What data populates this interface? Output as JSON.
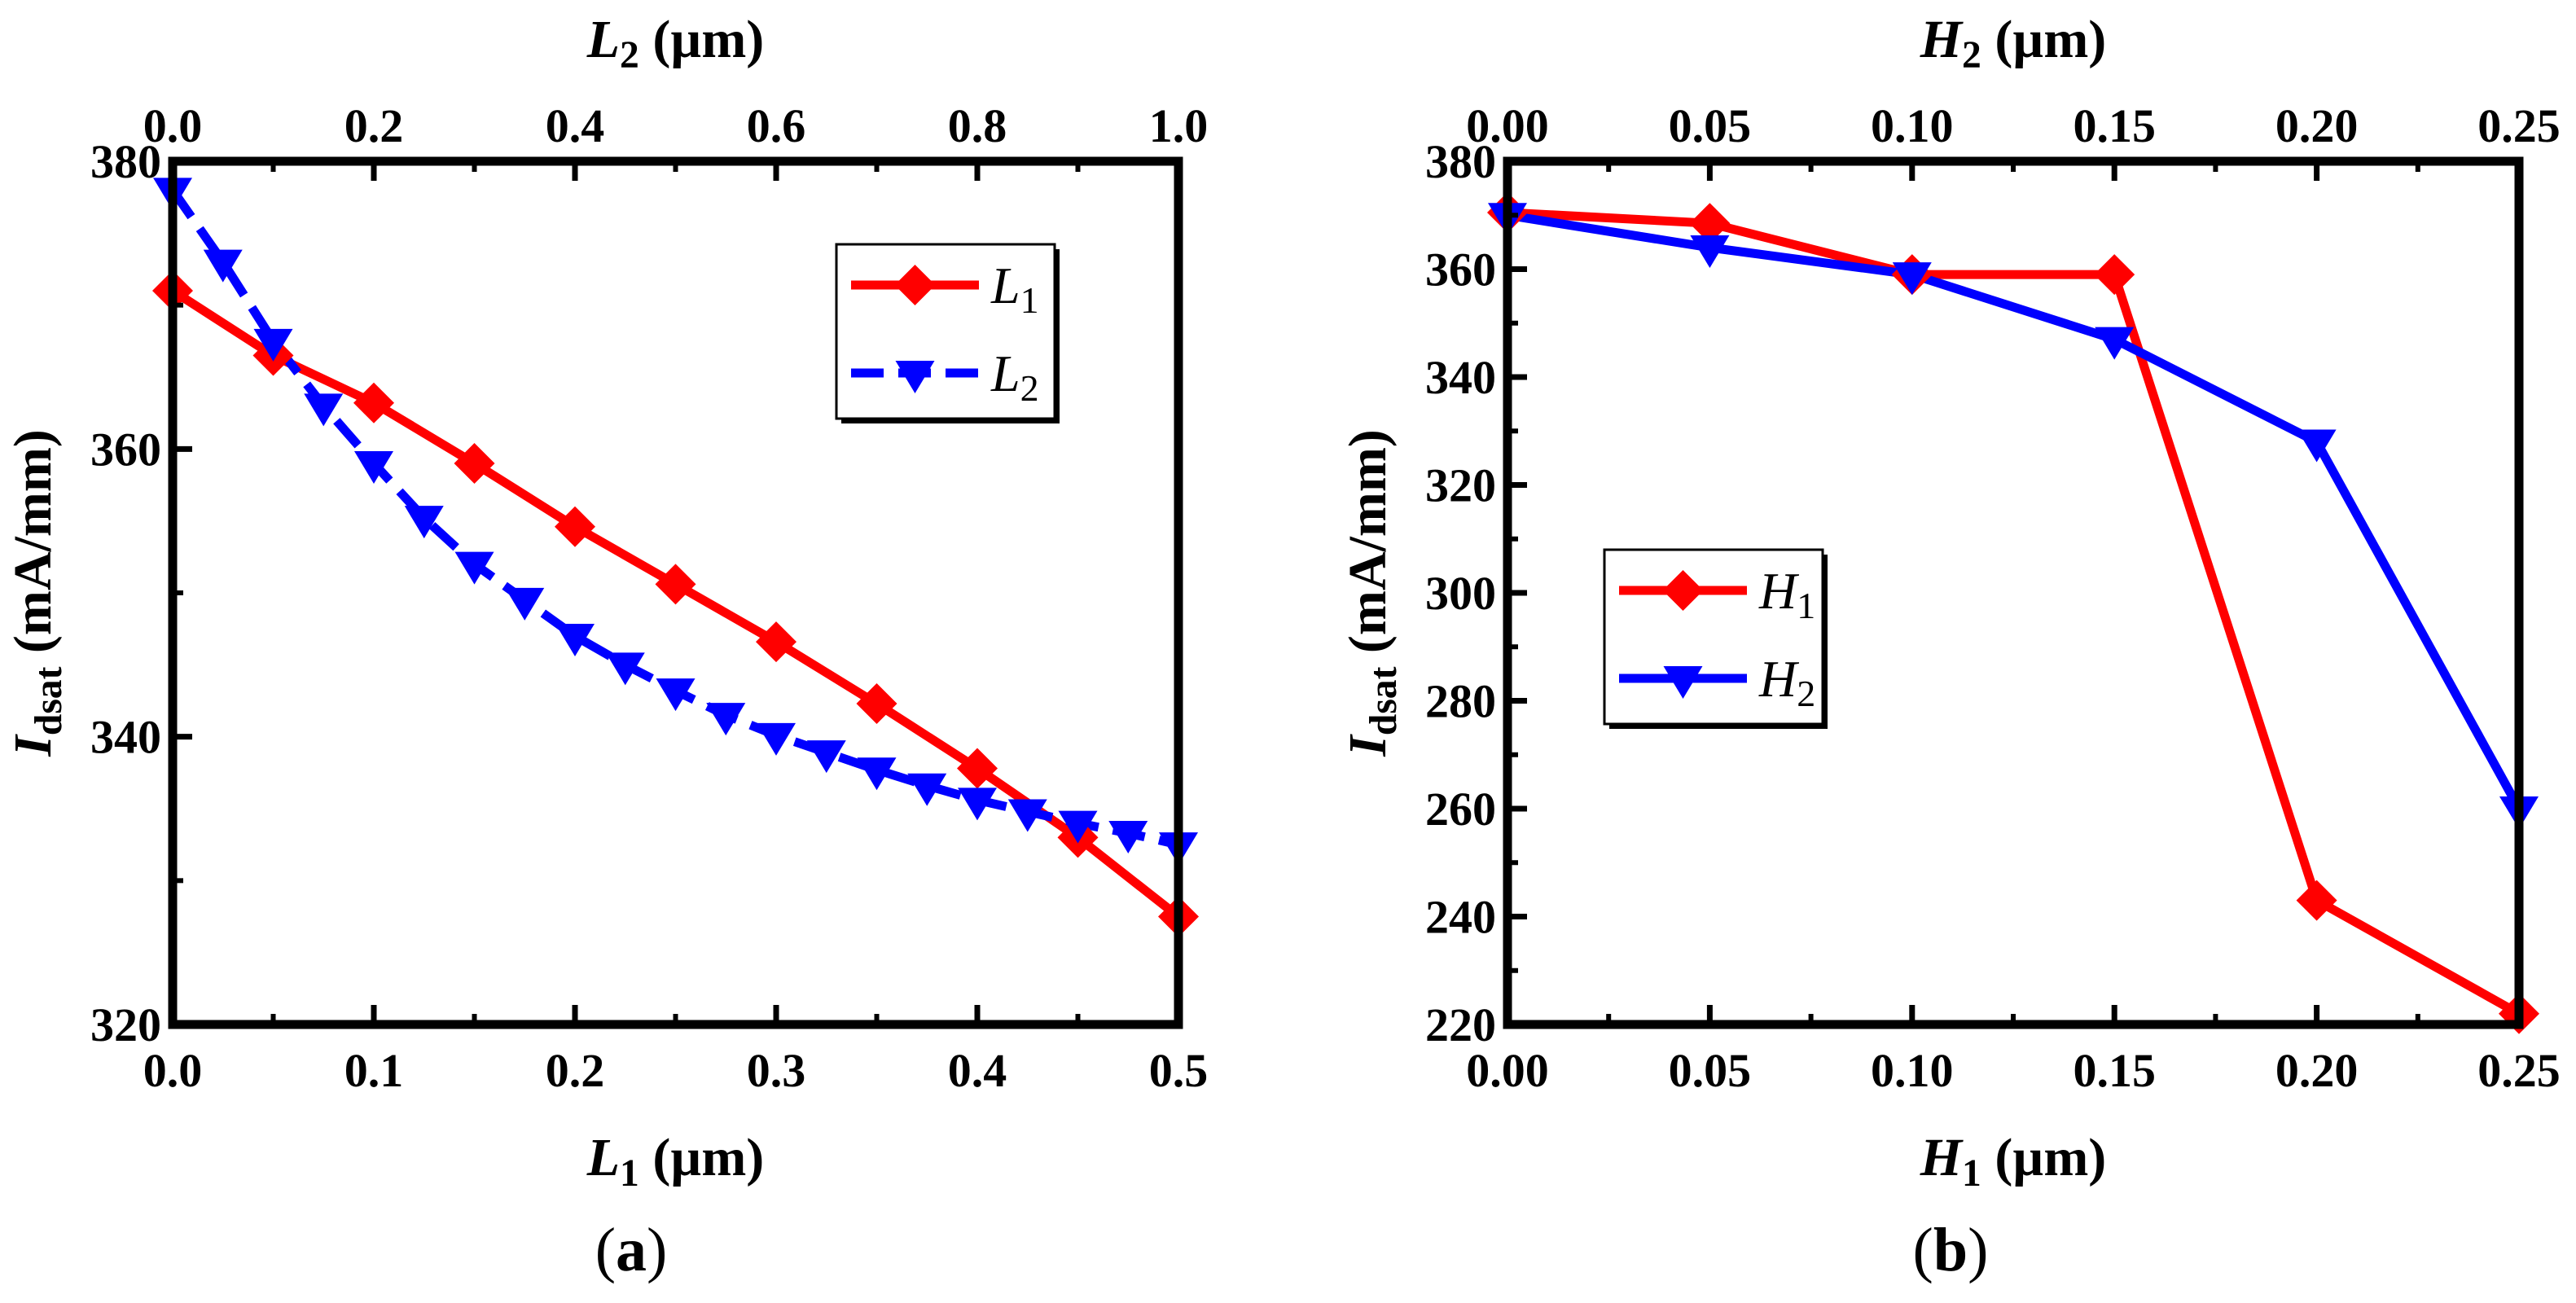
{
  "chart_data": [
    {
      "type": "line",
      "panel": "a",
      "caption_pre": "(",
      "caption_letter": "a",
      "caption_post": ")",
      "xlabel_main": "L",
      "xlabel_sub": "1",
      "xlabel_unit": " (µm)",
      "x2label_main": "L",
      "x2label_sub": "2",
      "x2label_unit": " (µm)",
      "ylabel_main": "I",
      "ylabel_sub": "dsat",
      "ylabel_unit": " (mA/mm)",
      "xlim": [
        0,
        0.5
      ],
      "x2lim": [
        0,
        1.0
      ],
      "ylim": [
        320,
        380
      ],
      "xticks": [
        0.0,
        0.1,
        0.2,
        0.3,
        0.4,
        0.5
      ],
      "xtick_labels": [
        "0.0",
        "0.1",
        "0.2",
        "0.3",
        "0.4",
        "0.5"
      ],
      "x2ticks": [
        0.0,
        0.2,
        0.4,
        0.6,
        0.8,
        1.0
      ],
      "x2tick_labels": [
        "0.0",
        "0.2",
        "0.4",
        "0.6",
        "0.8",
        "1.0"
      ],
      "yticks": [
        320,
        340,
        360,
        380
      ],
      "ytick_labels": [
        "320",
        "340",
        "360",
        "380"
      ],
      "legend_position": "top-right",
      "series": [
        {
          "name": "L",
          "name_sub": "1",
          "axis": "bottom",
          "color": "#ff0000",
          "marker": "diamond",
          "dash": "solid",
          "x": [
            0.0,
            0.05,
            0.1,
            0.15,
            0.2,
            0.25,
            0.3,
            0.35,
            0.4,
            0.45,
            0.5
          ],
          "y": [
            371,
            366.5,
            363.2,
            359,
            354.6,
            350.6,
            346.6,
            342.3,
            337.8,
            333,
            327.5
          ]
        },
        {
          "name": "L",
          "name_sub": "2",
          "axis": "top",
          "color": "#0000ff",
          "marker": "triangle-down",
          "dash": "dashed",
          "x": [
            0.0,
            0.05,
            0.1,
            0.15,
            0.2,
            0.25,
            0.3,
            0.35,
            0.4,
            0.45,
            0.5,
            0.55,
            0.6,
            0.65,
            0.7,
            0.75,
            0.8,
            0.85,
            0.9,
            0.95,
            1.0
          ],
          "y": [
            378,
            373,
            367.5,
            363,
            359,
            355.2,
            352,
            349.5,
            347,
            345,
            343.2,
            341.5,
            340.1,
            338.9,
            337.7,
            336.6,
            335.6,
            334.8,
            334,
            333.3,
            332.5
          ]
        }
      ]
    },
    {
      "type": "line",
      "panel": "b",
      "caption_pre": "(",
      "caption_letter": "b",
      "caption_post": ")",
      "xlabel_main": "H",
      "xlabel_sub": "1",
      "xlabel_unit": " (µm)",
      "x2label_main": "H",
      "x2label_sub": "2",
      "x2label_unit": " (µm)",
      "ylabel_main": "I",
      "ylabel_sub": "dsat",
      "ylabel_unit": " (mA/mm)",
      "xlim": [
        0,
        0.25
      ],
      "x2lim": [
        0,
        0.25
      ],
      "ylim": [
        220,
        380
      ],
      "xticks": [
        0.0,
        0.05,
        0.1,
        0.15,
        0.2,
        0.25
      ],
      "xtick_labels": [
        "0.00",
        "0.05",
        "0.10",
        "0.15",
        "0.20",
        "0.25"
      ],
      "x2ticks": [
        0.0,
        0.05,
        0.1,
        0.15,
        0.2,
        0.25
      ],
      "x2tick_labels": [
        "0.00",
        "0.05",
        "0.10",
        "0.15",
        "0.20",
        "0.25"
      ],
      "yticks": [
        220,
        240,
        260,
        280,
        300,
        320,
        340,
        360,
        380
      ],
      "ytick_labels": [
        "220",
        "240",
        "260",
        "280",
        "300",
        "320",
        "340",
        "360",
        "380"
      ],
      "legend_position": "center-left",
      "series": [
        {
          "name": "H",
          "name_sub": "1",
          "axis": "bottom",
          "color": "#ff0000",
          "marker": "diamond",
          "dash": "solid",
          "x": [
            0.0,
            0.05,
            0.1,
            0.15,
            0.2,
            0.25
          ],
          "y": [
            370.5,
            368.5,
            359,
            359,
            243,
            222
          ]
        },
        {
          "name": "H",
          "name_sub": "2",
          "axis": "top",
          "color": "#0000ff",
          "marker": "triangle-down",
          "dash": "solid",
          "x": [
            0.0,
            0.05,
            0.1,
            0.15,
            0.2,
            0.25
          ],
          "y": [
            370,
            364,
            359,
            347,
            328,
            260
          ]
        }
      ]
    }
  ]
}
